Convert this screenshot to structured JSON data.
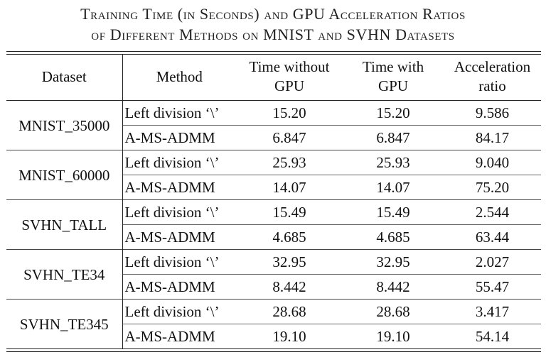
{
  "caption": {
    "line1": "Training Time (in Seconds) and GPU Acceleration Ratios",
    "line2": "of Different Methods on MNIST and SVHN Datasets"
  },
  "table": {
    "headers": [
      "Dataset",
      "Method",
      "Time without GPU",
      "Time with GPU",
      "Acceleration ratio"
    ],
    "header_lines": {
      "time_without": [
        "Time without",
        "GPU"
      ],
      "time_with": [
        "Time with",
        "GPU"
      ],
      "accel": [
        "Acceleration",
        "ratio"
      ]
    },
    "groups": [
      {
        "dataset": "MNIST_35000",
        "rows": [
          {
            "method": "Left division ‘\\’",
            "without": "15.20",
            "with": "15.20",
            "ratio": "9.586"
          },
          {
            "method": "A-MS-ADMM",
            "without": "6.847",
            "with": "6.847",
            "ratio": "84.17"
          }
        ]
      },
      {
        "dataset": "MNIST_60000",
        "rows": [
          {
            "method": "Left division ‘\\’",
            "without": "25.93",
            "with": "25.93",
            "ratio": "9.040"
          },
          {
            "method": "A-MS-ADMM",
            "without": "14.07",
            "with": "14.07",
            "ratio": "75.20"
          }
        ]
      },
      {
        "dataset": "SVHN_TALL",
        "rows": [
          {
            "method": "Left division ‘\\’",
            "without": "15.49",
            "with": "15.49",
            "ratio": "2.544"
          },
          {
            "method": "A-MS-ADMM",
            "without": "4.685",
            "with": "4.685",
            "ratio": "63.44"
          }
        ]
      },
      {
        "dataset": "SVHN_TE34",
        "rows": [
          {
            "method": "Left division ‘\\’",
            "without": "32.95",
            "with": "32.95",
            "ratio": "2.027"
          },
          {
            "method": "A-MS-ADMM",
            "without": "8.442",
            "with": "8.442",
            "ratio": "55.47"
          }
        ]
      },
      {
        "dataset": "SVHN_TE345",
        "rows": [
          {
            "method": "Left division ‘\\’",
            "without": "28.68",
            "with": "28.68",
            "ratio": "3.417"
          },
          {
            "method": "A-MS-ADMM",
            "without": "19.10",
            "with": "19.10",
            "ratio": "54.14"
          }
        ]
      }
    ]
  }
}
